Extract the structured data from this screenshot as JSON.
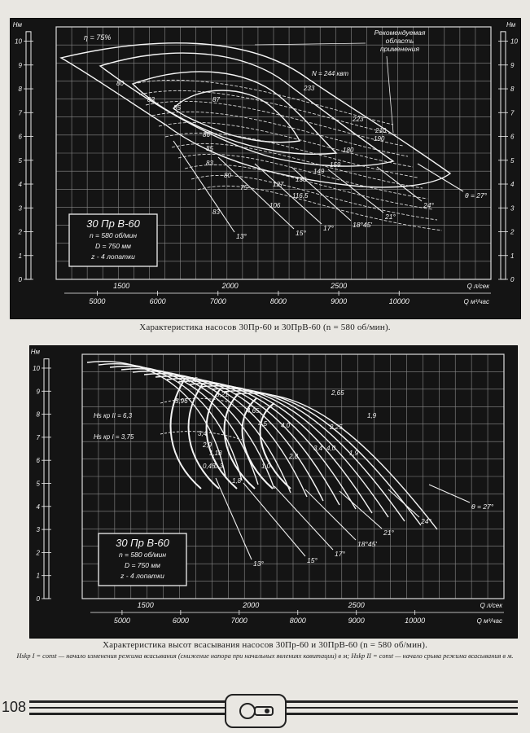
{
  "charts": [
    {
      "id": "perf",
      "axis_left_label": "Нм",
      "axis_right_label": "Нм",
      "h_ticks": [
        "0",
        "1",
        "2",
        "3",
        "4",
        "5",
        "6",
        "7",
        "8",
        "9",
        "10"
      ],
      "q_ls_ticks": [
        "1500",
        "2000",
        "2500"
      ],
      "q_ls_unit": "Q л/сек",
      "q_m3_ticks": [
        "5000",
        "6000",
        "7000",
        "8000",
        "9000",
        "10000"
      ],
      "q_m3_unit": "Q м³/час",
      "inset": [
        "30 Пр В-60",
        "n = 580 об/мин",
        "D = 750 мм",
        "z - 4 лопатки"
      ],
      "efficiency_labels": [
        "η = 75%",
        "80",
        "83",
        "85",
        "86",
        "87",
        "85",
        "83",
        "80",
        "75",
        "83"
      ],
      "power_labels": [
        "N = 244 квт",
        "233",
        "223",
        "210",
        "190",
        "180",
        "159",
        "149",
        "138",
        "127",
        "116,5",
        "106"
      ],
      "blade_angles": [
        "13°",
        "15°",
        "17°",
        "18°45'",
        "21°",
        "24°",
        "θ = 27°"
      ],
      "region_label": [
        "Рекомендуемая",
        "область",
        "применения"
      ],
      "caption": "Характеристика насосов 30Пр-60 и 30ПрВ-60 (n = 580 об/мин)."
    },
    {
      "id": "suction",
      "axis_left_label": "Нм",
      "h_ticks": [
        "0",
        "1",
        "2",
        "3",
        "4",
        "5",
        "6",
        "7",
        "8",
        "9",
        "10"
      ],
      "q_ls_ticks": [
        "1500",
        "2000",
        "2500"
      ],
      "q_ls_unit": "Q л/сек",
      "q_m3_ticks": [
        "5000",
        "6000",
        "7000",
        "8000",
        "9000",
        "10000"
      ],
      "q_m3_unit": "Q м³/час",
      "inset": [
        "30 Пр В-60",
        "n = 580 об/мин",
        "D = 750 мм",
        "z - 4 лопатки"
      ],
      "hs_labels": [
        "Hs кр II = 6,3",
        "Hs кр I = 3,75"
      ],
      "curve_labels": [
        "5,96",
        "5,65",
        "5,21",
        "4,65",
        "4,5",
        "4,0",
        "3,4",
        "2,9",
        "2,65",
        "2,25",
        "1,9",
        "1,18",
        "0,45",
        "0,3",
        "1,0",
        "1,8",
        "2,8",
        "3,4",
        "4,0",
        "1,9"
      ],
      "blade_angles": [
        "13°",
        "15°",
        "17°",
        "18°45'",
        "21°",
        "24°",
        "θ = 27°"
      ],
      "caption": "Характеристика высот всасывания насосов 30Пр-60 и 30ПрВ-60 (n = 580 об/мин).",
      "note": "Hskp I = const — начало изменения режима всасывания (снижение напора при начальных явлениях кавитации) в м; Hskp II = const — начало срыва режима всасывания в м."
    }
  ],
  "page_number": "108"
}
